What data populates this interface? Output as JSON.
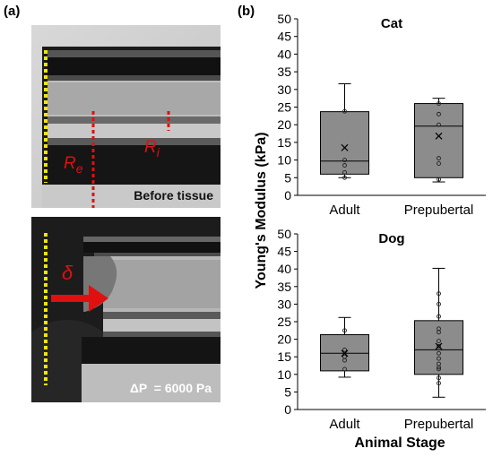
{
  "panel_a": {
    "label": "(a)",
    "top_photo": {
      "caption": "Before tissue",
      "label_re": "R",
      "label_re_sub": "e",
      "label_ri": "R",
      "label_ri_sub": "i"
    },
    "bottom_photo": {
      "caption": "ΔP  = 6000 Pa",
      "label_delta": "δ"
    },
    "colors": {
      "marker_yellow": "#f2e600",
      "marker_red": "#e01010"
    }
  },
  "panel_b": {
    "label": "(b)",
    "ylabel": "Young's Modulus (kPa)",
    "xlabel": "Animal Stage"
  },
  "chart_data": [
    {
      "type": "box",
      "title": "Cat",
      "categories": [
        "Adult",
        "Prepubertal"
      ],
      "ylim": [
        0,
        50
      ],
      "yticks": [
        0,
        5,
        10,
        15,
        20,
        25,
        30,
        35,
        40,
        45,
        50
      ],
      "boxes": [
        {
          "category": "Adult",
          "whisker_low": 5.0,
          "q1": 6.0,
          "median": 9.7,
          "q3": 23.7,
          "whisker_high": 31.6,
          "mean": 13.5,
          "points": [
            5.0,
            6.5,
            8.5,
            10.0,
            23.8
          ]
        },
        {
          "category": "Prepubertal",
          "whisker_low": 3.8,
          "q1": 5.0,
          "median": 19.6,
          "q3": 26.0,
          "whisker_high": 27.5,
          "mean": 16.8,
          "points": [
            4.5,
            9.0,
            10.5,
            20.0,
            23.0,
            26.0
          ]
        }
      ]
    },
    {
      "type": "box",
      "title": "Dog",
      "categories": [
        "Adult",
        "Prepubertal"
      ],
      "ylim": [
        0,
        50
      ],
      "yticks": [
        0,
        5,
        10,
        15,
        20,
        25,
        30,
        35,
        40,
        45,
        50
      ],
      "boxes": [
        {
          "category": "Adult",
          "whisker_low": 9.2,
          "q1": 11.0,
          "median": 16.0,
          "q3": 21.3,
          "whisker_high": 26.2,
          "mean": 16.0,
          "points": [
            11.5,
            14.0,
            15.0,
            17.0,
            22.5
          ]
        },
        {
          "category": "Prepubertal",
          "whisker_low": 3.5,
          "q1": 10.0,
          "median": 17.0,
          "q3": 25.3,
          "whisker_high": 40.2,
          "mean": 18.0,
          "points": [
            7.5,
            9.0,
            11.5,
            12.0,
            13.0,
            14.5,
            16.0,
            18.0,
            19.5,
            22.0,
            23.0,
            26.5,
            30.0,
            33.0
          ]
        }
      ]
    }
  ]
}
